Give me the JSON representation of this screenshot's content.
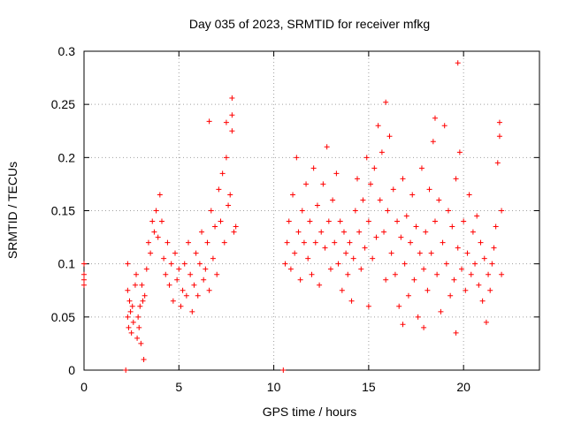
{
  "chart_data": {
    "type": "scatter",
    "title": "Day 035 of 2023, SRMTID for receiver mfkg",
    "xlabel": "GPS time / hours",
    "ylabel": "SRMTID / TECUs",
    "xlim": [
      0,
      24
    ],
    "ylim": [
      0,
      0.3
    ],
    "xticks": [
      0,
      5,
      10,
      15,
      20
    ],
    "xtick_labels": [
      "0",
      "5",
      "10",
      "15",
      "20"
    ],
    "yticks": [
      0,
      0.05,
      0.1,
      0.15,
      0.2,
      0.25,
      0.3
    ],
    "ytick_labels": [
      "0",
      "0.05",
      "0.1",
      "0.15",
      "0.2",
      "0.25",
      "0.3"
    ],
    "grid": true,
    "marker": "+",
    "color": "#ff0000",
    "series": [
      {
        "name": "SRMTID",
        "points": [
          [
            0.0,
            0.1
          ],
          [
            0.0,
            0.085
          ],
          [
            0.0,
            0.08
          ],
          [
            0.0,
            0.09
          ],
          [
            2.2,
            0.0
          ],
          [
            10.5,
            0.0
          ],
          [
            2.3,
            0.1
          ],
          [
            2.3,
            0.075
          ],
          [
            2.3,
            0.05
          ],
          [
            2.35,
            0.04
          ],
          [
            2.4,
            0.065
          ],
          [
            2.45,
            0.055
          ],
          [
            2.5,
            0.035
          ],
          [
            2.55,
            0.06
          ],
          [
            2.6,
            0.045
          ],
          [
            2.7,
            0.08
          ],
          [
            2.75,
            0.09
          ],
          [
            2.8,
            0.03
          ],
          [
            2.85,
            0.05
          ],
          [
            2.9,
            0.04
          ],
          [
            2.95,
            0.06
          ],
          [
            3.0,
            0.025
          ],
          [
            3.05,
            0.08
          ],
          [
            3.1,
            0.065
          ],
          [
            3.15,
            0.01
          ],
          [
            3.2,
            0.07
          ],
          [
            3.3,
            0.095
          ],
          [
            3.4,
            0.12
          ],
          [
            3.5,
            0.11
          ],
          [
            3.6,
            0.14
          ],
          [
            3.7,
            0.13
          ],
          [
            3.8,
            0.15
          ],
          [
            3.9,
            0.125
          ],
          [
            4.0,
            0.165
          ],
          [
            4.1,
            0.14
          ],
          [
            4.2,
            0.105
          ],
          [
            4.3,
            0.09
          ],
          [
            4.4,
            0.12
          ],
          [
            4.5,
            0.08
          ],
          [
            4.6,
            0.1
          ],
          [
            4.7,
            0.065
          ],
          [
            4.8,
            0.11
          ],
          [
            4.9,
            0.085
          ],
          [
            5.0,
            0.095
          ],
          [
            5.1,
            0.06
          ],
          [
            5.2,
            0.075
          ],
          [
            5.3,
            0.1
          ],
          [
            5.4,
            0.07
          ],
          [
            5.5,
            0.12
          ],
          [
            5.6,
            0.09
          ],
          [
            5.7,
            0.055
          ],
          [
            5.8,
            0.08
          ],
          [
            5.9,
            0.11
          ],
          [
            6.0,
            0.07
          ],
          [
            6.1,
            0.1
          ],
          [
            6.2,
            0.13
          ],
          [
            6.3,
            0.085
          ],
          [
            6.4,
            0.095
          ],
          [
            6.5,
            0.12
          ],
          [
            6.6,
            0.075
          ],
          [
            6.7,
            0.15
          ],
          [
            6.8,
            0.105
          ],
          [
            6.9,
            0.135
          ],
          [
            7.0,
            0.09
          ],
          [
            7.1,
            0.17
          ],
          [
            7.2,
            0.14
          ],
          [
            7.3,
            0.185
          ],
          [
            7.4,
            0.12
          ],
          [
            7.5,
            0.2
          ],
          [
            7.6,
            0.155
          ],
          [
            7.7,
            0.165
          ],
          [
            7.8,
            0.225
          ],
          [
            7.9,
            0.13
          ],
          [
            8.0,
            0.135
          ],
          [
            7.8,
            0.256
          ],
          [
            7.5,
            0.233
          ],
          [
            7.8,
            0.24
          ],
          [
            6.6,
            0.234
          ],
          [
            10.6,
            0.1
          ],
          [
            10.7,
            0.12
          ],
          [
            10.8,
            0.14
          ],
          [
            10.9,
            0.095
          ],
          [
            11.0,
            0.165
          ],
          [
            11.1,
            0.11
          ],
          [
            11.2,
            0.2
          ],
          [
            11.3,
            0.13
          ],
          [
            11.4,
            0.085
          ],
          [
            11.5,
            0.15
          ],
          [
            11.6,
            0.12
          ],
          [
            11.7,
            0.175
          ],
          [
            11.8,
            0.105
          ],
          [
            11.9,
            0.14
          ],
          [
            12.0,
            0.09
          ],
          [
            12.1,
            0.19
          ],
          [
            12.2,
            0.12
          ],
          [
            12.3,
            0.155
          ],
          [
            12.4,
            0.08
          ],
          [
            12.5,
            0.13
          ],
          [
            12.6,
            0.175
          ],
          [
            12.7,
            0.115
          ],
          [
            12.8,
            0.21
          ],
          [
            12.9,
            0.14
          ],
          [
            13.0,
            0.095
          ],
          [
            13.1,
            0.16
          ],
          [
            13.2,
            0.12
          ],
          [
            13.3,
            0.185
          ],
          [
            13.4,
            0.1
          ],
          [
            13.5,
            0.14
          ],
          [
            13.6,
            0.075
          ],
          [
            13.7,
            0.13
          ],
          [
            13.8,
            0.11
          ],
          [
            13.9,
            0.09
          ],
          [
            14.0,
            0.12
          ],
          [
            14.1,
            0.065
          ],
          [
            14.2,
            0.105
          ],
          [
            14.3,
            0.15
          ],
          [
            14.4,
            0.18
          ],
          [
            14.5,
            0.13
          ],
          [
            14.6,
            0.095
          ],
          [
            14.7,
            0.16
          ],
          [
            14.8,
            0.115
          ],
          [
            14.9,
            0.2
          ],
          [
            15.0,
            0.14
          ],
          [
            15.1,
            0.175
          ],
          [
            15.2,
            0.105
          ],
          [
            15.3,
            0.19
          ],
          [
            15.4,
            0.125
          ],
          [
            15.5,
            0.23
          ],
          [
            15.6,
            0.16
          ],
          [
            15.7,
            0.205
          ],
          [
            15.8,
            0.13
          ],
          [
            15.9,
            0.085
          ],
          [
            16.0,
            0.15
          ],
          [
            16.1,
            0.22
          ],
          [
            16.2,
            0.11
          ],
          [
            16.3,
            0.17
          ],
          [
            16.4,
            0.09
          ],
          [
            16.5,
            0.14
          ],
          [
            16.6,
            0.06
          ],
          [
            16.7,
            0.125
          ],
          [
            16.8,
            0.18
          ],
          [
            16.9,
            0.1
          ],
          [
            17.0,
            0.145
          ],
          [
            17.1,
            0.07
          ],
          [
            17.2,
            0.12
          ],
          [
            17.3,
            0.165
          ],
          [
            17.4,
            0.085
          ],
          [
            17.5,
            0.135
          ],
          [
            17.6,
            0.05
          ],
          [
            17.7,
            0.11
          ],
          [
            17.8,
            0.19
          ],
          [
            17.9,
            0.095
          ],
          [
            18.0,
            0.13
          ],
          [
            18.1,
            0.075
          ],
          [
            18.2,
            0.17
          ],
          [
            18.3,
            0.11
          ],
          [
            18.4,
            0.215
          ],
          [
            18.5,
            0.14
          ],
          [
            18.6,
            0.09
          ],
          [
            18.7,
            0.16
          ],
          [
            18.8,
            0.055
          ],
          [
            18.9,
            0.12
          ],
          [
            19.0,
            0.23
          ],
          [
            19.1,
            0.1
          ],
          [
            19.2,
            0.15
          ],
          [
            19.3,
            0.07
          ],
          [
            19.4,
            0.135
          ],
          [
            19.5,
            0.085
          ],
          [
            19.6,
            0.18
          ],
          [
            19.7,
            0.115
          ],
          [
            19.8,
            0.205
          ],
          [
            19.9,
            0.095
          ],
          [
            20.0,
            0.14
          ],
          [
            20.1,
            0.075
          ],
          [
            20.2,
            0.11
          ],
          [
            20.3,
            0.165
          ],
          [
            20.4,
            0.09
          ],
          [
            20.5,
            0.13
          ],
          [
            20.6,
            0.1
          ],
          [
            20.7,
            0.145
          ],
          [
            20.8,
            0.08
          ],
          [
            20.9,
            0.12
          ],
          [
            21.0,
            0.065
          ],
          [
            21.1,
            0.105
          ],
          [
            21.2,
            0.045
          ],
          [
            21.3,
            0.09
          ],
          [
            21.4,
            0.075
          ],
          [
            21.5,
            0.1
          ],
          [
            21.6,
            0.115
          ],
          [
            21.7,
            0.135
          ],
          [
            21.8,
            0.195
          ],
          [
            21.9,
            0.22
          ],
          [
            22.0,
            0.15
          ],
          [
            22.0,
            0.09
          ],
          [
            15.9,
            0.252
          ],
          [
            18.5,
            0.237
          ],
          [
            19.7,
            0.289
          ],
          [
            21.9,
            0.233
          ],
          [
            17.9,
            0.04
          ],
          [
            19.6,
            0.035
          ],
          [
            16.8,
            0.043
          ],
          [
            15.0,
            0.06
          ]
        ]
      }
    ]
  }
}
